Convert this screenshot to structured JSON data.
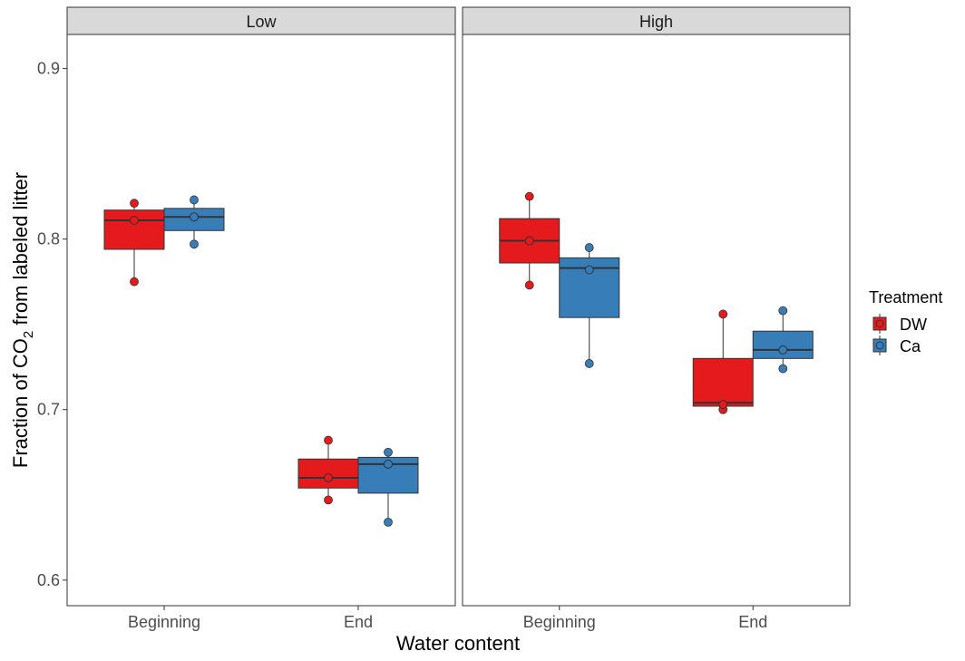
{
  "chart_data": {
    "type": "boxplot",
    "xlabel": "Water content",
    "ylabel": {
      "prefix": "Fraction of CO",
      "subscript": "2",
      "suffix": " from labeled litter"
    },
    "ylim": [
      0.585,
      0.92
    ],
    "yticks": [
      0.6,
      0.7,
      0.8,
      0.9
    ],
    "ytick_labels": [
      "0.6",
      "0.7",
      "0.8",
      "0.9"
    ],
    "categories": [
      "Beginning",
      "End"
    ],
    "grid": false,
    "legend": {
      "title": "Treatment",
      "position": "right",
      "entries": [
        {
          "name": "DW",
          "color": "#E41A1C"
        },
        {
          "name": "Ca",
          "color": "#377EB8"
        }
      ]
    },
    "panels": [
      {
        "label": "Low",
        "groups": [
          {
            "category": "Beginning",
            "series": "DW",
            "q1": 0.794,
            "median": 0.811,
            "q3": 0.817,
            "whisker_low": 0.775,
            "whisker_high": 0.821,
            "mean": 0.811,
            "points": [
              0.821,
              0.775
            ]
          },
          {
            "category": "Beginning",
            "series": "Ca",
            "q1": 0.805,
            "median": 0.813,
            "q3": 0.818,
            "whisker_low": 0.797,
            "whisker_high": 0.823,
            "mean": 0.813,
            "points": [
              0.823,
              0.797
            ]
          },
          {
            "category": "End",
            "series": "DW",
            "q1": 0.654,
            "median": 0.66,
            "q3": 0.671,
            "whisker_low": 0.647,
            "whisker_high": 0.682,
            "mean": 0.66,
            "points": [
              0.682,
              0.647
            ]
          },
          {
            "category": "End",
            "series": "Ca",
            "q1": 0.651,
            "median": 0.668,
            "q3": 0.672,
            "whisker_low": 0.634,
            "whisker_high": 0.675,
            "mean": 0.668,
            "points": [
              0.675,
              0.634
            ]
          }
        ]
      },
      {
        "label": "High",
        "groups": [
          {
            "category": "Beginning",
            "series": "DW",
            "q1": 0.786,
            "median": 0.799,
            "q3": 0.812,
            "whisker_low": 0.773,
            "whisker_high": 0.825,
            "mean": 0.799,
            "points": [
              0.825,
              0.773
            ]
          },
          {
            "category": "Beginning",
            "series": "Ca",
            "q1": 0.754,
            "median": 0.783,
            "q3": 0.789,
            "whisker_low": 0.727,
            "whisker_high": 0.795,
            "mean": 0.782,
            "points": [
              0.795,
              0.727
            ]
          },
          {
            "category": "End",
            "series": "DW",
            "q1": 0.702,
            "median": 0.704,
            "q3": 0.73,
            "whisker_low": 0.7,
            "whisker_high": 0.756,
            "mean": 0.703,
            "points": [
              0.756,
              0.7
            ]
          },
          {
            "category": "End",
            "series": "Ca",
            "q1": 0.73,
            "median": 0.735,
            "q3": 0.746,
            "whisker_low": 0.724,
            "whisker_high": 0.758,
            "mean": 0.735,
            "points": [
              0.758,
              0.724
            ]
          }
        ]
      }
    ]
  }
}
